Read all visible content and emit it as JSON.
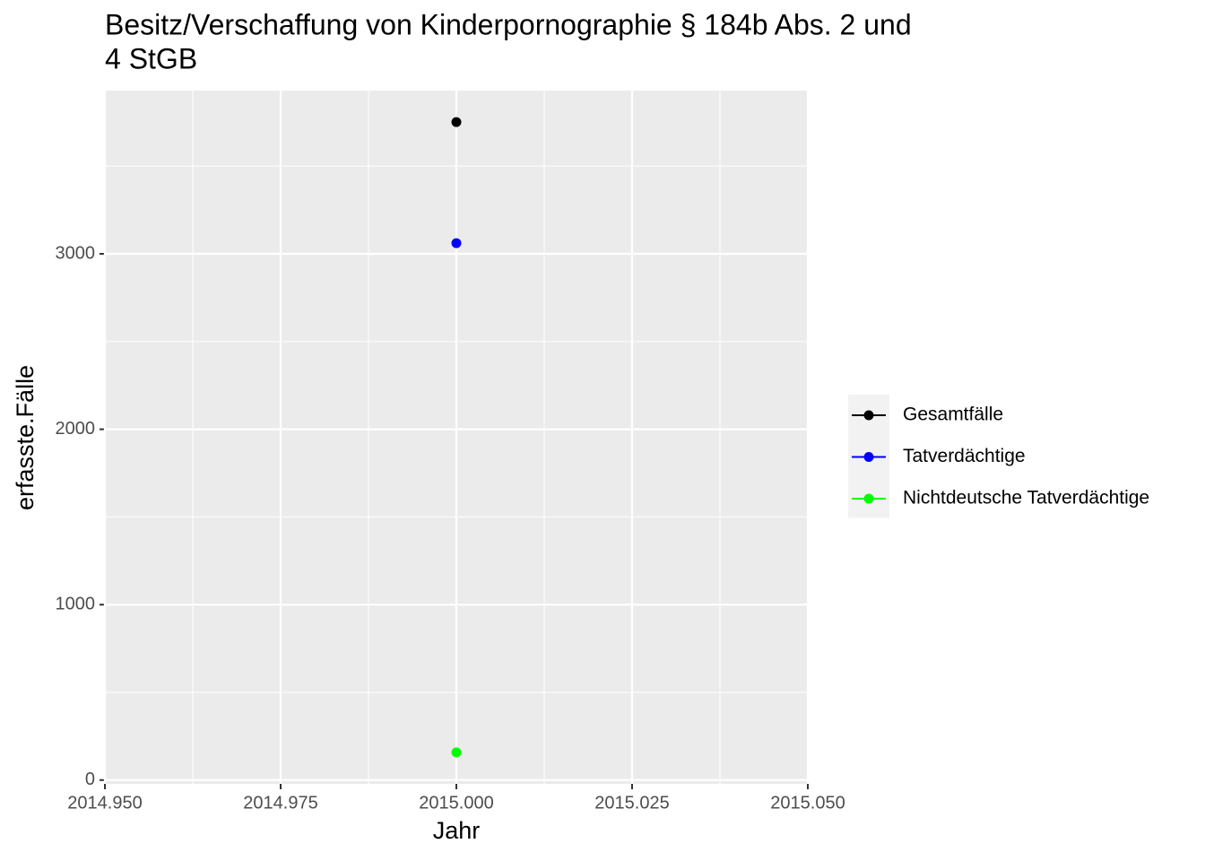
{
  "chart_data": {
    "type": "line",
    "title": [
      "Besitz/Verschaffung von Kinderpornographie § 184b Abs. 2 und",
      "4 StGB"
    ],
    "x_label": "Jahr",
    "y_label": "erfasste.Fälle",
    "x": [
      2015
    ],
    "series": [
      {
        "name": "Gesamtfälle",
        "color": "#000000",
        "values": [
          3751
        ]
      },
      {
        "name": "Tatverdächtige",
        "color": "#0000ff",
        "values": [
          3061
        ]
      },
      {
        "name": "Nichtdeutsche Tatverdächtige",
        "color": "#00ff00",
        "values": [
          158
        ]
      }
    ],
    "xlim": [
      2014.95,
      2015.05
    ],
    "xticks": [
      {
        "value": 2014.95,
        "label": "2014.950"
      },
      {
        "value": 2014.975,
        "label": "2014.975"
      },
      {
        "value": 2015,
        "label": "2015.000"
      },
      {
        "value": 2015.025,
        "label": "2015.025"
      },
      {
        "value": 2015.05,
        "label": "2015.050"
      }
    ],
    "x_minor_ticks": [
      2014.9625,
      2014.9875,
      2015.0125,
      2015.0375
    ],
    "ylim": [
      -21.6,
      3930.6
    ],
    "yticks": [
      0,
      1000,
      2000,
      3000
    ],
    "y_minor_ticks": [
      500,
      1500,
      2500,
      3500
    ],
    "grid": true,
    "legend": "right"
  }
}
